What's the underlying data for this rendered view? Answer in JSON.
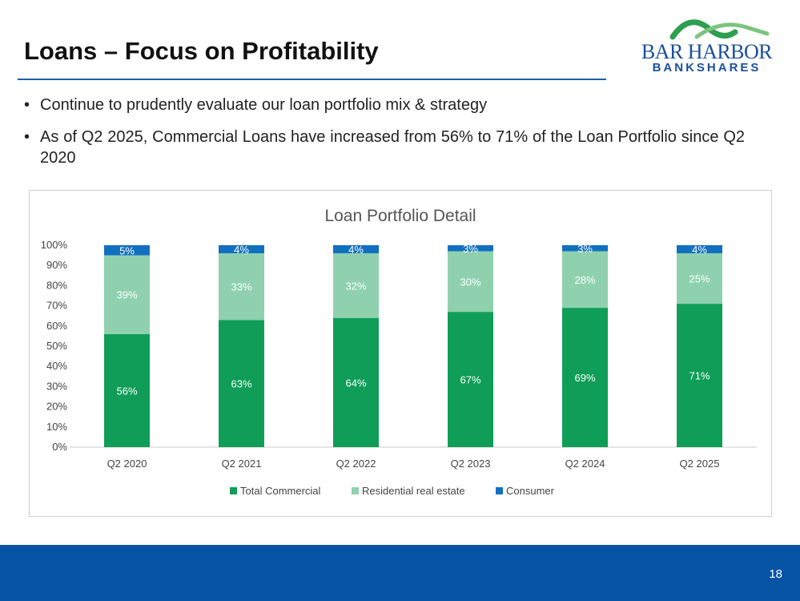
{
  "slide": {
    "title": "Loans – Focus on Profitability",
    "page_number": "18"
  },
  "logo": {
    "line1": "BAR HARBOR",
    "line2": "BANKSHARES"
  },
  "bullets": [
    "Continue to prudently evaluate our loan portfolio mix & strategy",
    "As of Q2 2025, Commercial Loans have increased from 56% to 71% of the Loan Portfolio since Q2 2020"
  ],
  "bullet_glyph": "•",
  "colors": {
    "total_commercial": "#0f9d58",
    "residential": "#8fd1ae",
    "consumer": "#1270c0",
    "footer": "#0753a6",
    "title_rule": "#1f5fa8"
  },
  "chart_data": {
    "type": "bar",
    "stacked": true,
    "title": "Loan Portfolio Detail",
    "xlabel": "",
    "ylabel": "",
    "ylim": [
      0,
      100
    ],
    "yticks": [
      "0%",
      "10%",
      "20%",
      "30%",
      "40%",
      "50%",
      "60%",
      "70%",
      "80%",
      "90%",
      "100%"
    ],
    "grid": false,
    "legend_position": "bottom",
    "categories": [
      "Q2 2020",
      "Q2 2021",
      "Q2 2022",
      "Q2 2023",
      "Q2 2024",
      "Q2 2025"
    ],
    "series": [
      {
        "name": "Total Commercial",
        "values": [
          56,
          63,
          64,
          67,
          69,
          71
        ],
        "labels": [
          "56%",
          "63%",
          "64%",
          "67%",
          "69%",
          "71%"
        ],
        "color": "#0f9d58"
      },
      {
        "name": "Residential real estate",
        "values": [
          39,
          33,
          32,
          30,
          28,
          25
        ],
        "labels": [
          "39%",
          "33%",
          "32%",
          "30%",
          "28%",
          "25%"
        ],
        "color": "#8fd1ae"
      },
      {
        "name": "Consumer",
        "values": [
          5,
          4,
          4,
          3,
          3,
          4
        ],
        "labels": [
          "5%",
          "4%",
          "4%",
          "3%",
          "3%",
          "4%"
        ],
        "color": "#1270c0"
      }
    ]
  }
}
